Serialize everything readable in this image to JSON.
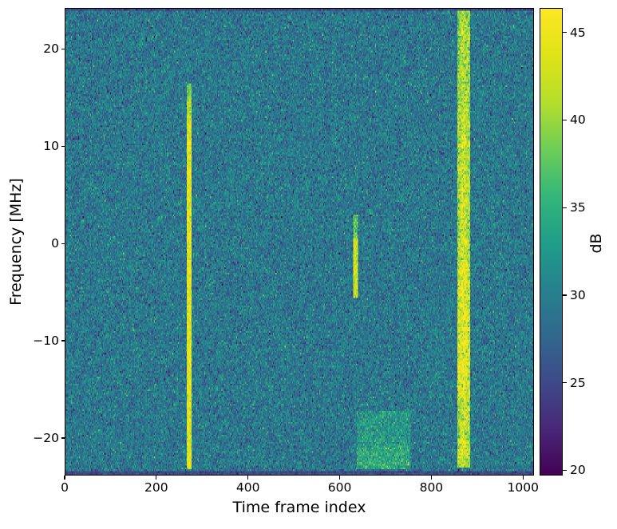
{
  "figure": {
    "background": "#ffffff",
    "text_color": "#000000"
  },
  "chart_data": {
    "type": "heatmap",
    "subtype": "spectrogram",
    "title": "",
    "xlabel": "Time frame index",
    "ylabel": "Frequency [MHz]",
    "colorbar_label": "dB",
    "xlim": [
      0,
      1024
    ],
    "ylim": [
      -23.85,
      24.2
    ],
    "clim": [
      19.7,
      46.4
    ],
    "x_ticks": [
      0,
      200,
      400,
      600,
      800,
      1000
    ],
    "y_ticks": [
      20,
      10,
      0,
      -10,
      -20
    ],
    "colorbar_ticks": [
      45,
      40,
      35,
      30,
      25,
      20
    ],
    "colormap": "viridis",
    "viridis_stops": [
      "#440154",
      "#482878",
      "#3e4a89",
      "#31688e",
      "#26828e",
      "#1f9e89",
      "#35b779",
      "#6ece58",
      "#b5de2b",
      "#dfe318",
      "#fde725"
    ],
    "grid": false,
    "noise": {
      "mean_db": 29.3,
      "std_db": 2.7
    },
    "edge_bands": {
      "level_db": 25.0,
      "speckle_db": 1.8
    },
    "signals": [
      {
        "kind": "vline",
        "frames": [
          267,
          276
        ],
        "freq_mhz": [
          -23.3,
          16.5
        ],
        "level_db": 44.0,
        "fade_above_mhz": 12,
        "fade_rate_db_per_mhz": 1.5,
        "speckle_db": 2.2
      },
      {
        "kind": "vline",
        "frames": [
          630,
          639
        ],
        "freq_mhz": [
          -5.7,
          3.0
        ],
        "level_db": 42.5,
        "faint_above_mhz": 0.5,
        "faint_level_db": 37.5,
        "speckle_db": 2.2
      },
      {
        "kind": "vline",
        "frames": [
          858,
          886
        ],
        "freq_mhz": [
          -23.1,
          24.2
        ],
        "level_db": 43.5,
        "edge_rolloff_db": 3.5,
        "boost_freq_mhz": [
          -16,
          -2
        ],
        "boost_db": 2.0,
        "damp_above_mhz": 14,
        "damp_db": 1.5,
        "speckle_db": 3.4
      },
      {
        "kind": "block",
        "frames": [
          639,
          755
        ],
        "freq_mhz": [
          -23.2,
          -17.35
        ],
        "boost_db": 3.2,
        "bright_sub_freq_mhz": [
          -23.2,
          -21.0
        ],
        "bright_boost_db": 4.8
      }
    ]
  }
}
